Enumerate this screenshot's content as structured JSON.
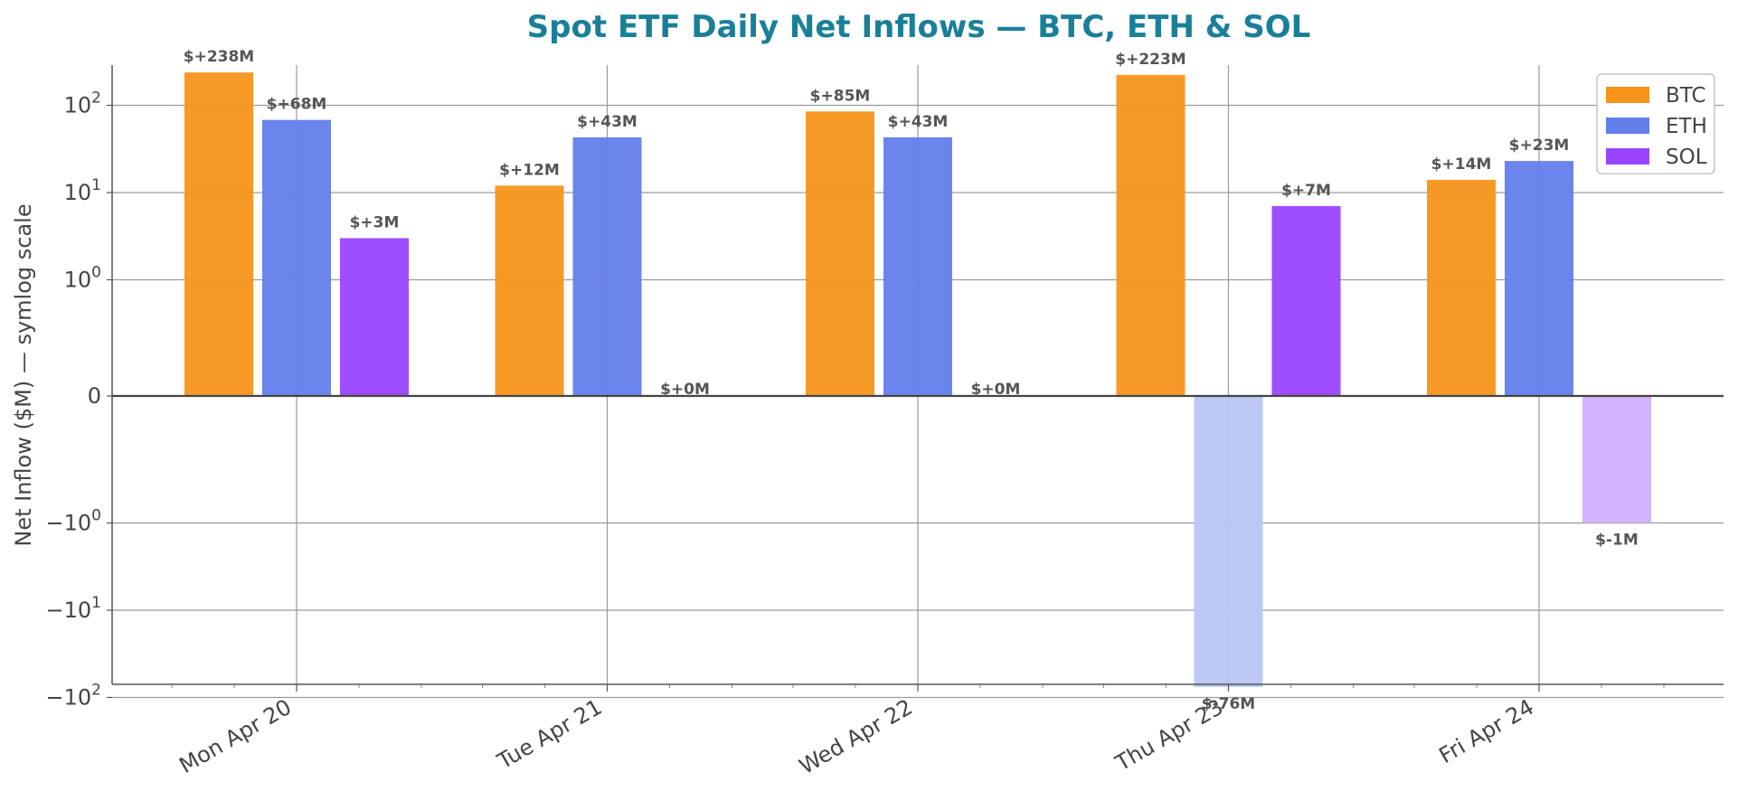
{
  "chart_data": {
    "type": "bar",
    "title": "Spot ETF Daily Net Inflows — BTC, ETH & SOL",
    "xlabel": "",
    "ylabel": "Net Inflow ($M) — symlog scale",
    "yscale": "symlog",
    "ylim": [
      -130,
      500
    ],
    "grid": true,
    "legend_position": "top-right",
    "colors": {
      "title": "#1a7f99",
      "axis": "#555555"
    },
    "categories": [
      "Mon Apr 20",
      "Tue Apr 21",
      "Wed Apr 22",
      "Thu Apr 23",
      "Fri Apr 24"
    ],
    "yticks": [
      {
        "value": 100,
        "base": "10",
        "exp": "2",
        "sign": ""
      },
      {
        "value": 10,
        "base": "10",
        "exp": "1",
        "sign": ""
      },
      {
        "value": 1,
        "base": "10",
        "exp": "0",
        "sign": ""
      },
      {
        "value": 0,
        "base": "0",
        "exp": "",
        "sign": ""
      },
      {
        "value": -1,
        "base": "10",
        "exp": "0",
        "sign": "−"
      },
      {
        "value": -10,
        "base": "10",
        "exp": "1",
        "sign": "−"
      },
      {
        "value": -100,
        "base": "10",
        "exp": "2",
        "sign": "−"
      }
    ],
    "series": [
      {
        "name": "BTC",
        "color": "#f7931a",
        "neg_color": "#fbc98c",
        "values": [
          238,
          12,
          85,
          223,
          14
        ],
        "labels": [
          "$+238M",
          "$+12M",
          "$+85M",
          "$+223M",
          "$+14M"
        ]
      },
      {
        "name": "ETH",
        "color": "#627eea",
        "neg_color": "#b9c5f4",
        "values": [
          68,
          43,
          43,
          -76,
          23
        ],
        "labels": [
          "$+68M",
          "$+43M",
          "$+43M",
          "$-76M",
          "$+23M"
        ]
      },
      {
        "name": "SOL",
        "color": "#9945ff",
        "neg_color": "#d1aefd",
        "values": [
          3,
          0,
          0,
          7,
          -1
        ],
        "labels": [
          "$+3M",
          "$+0M",
          "$+0M",
          "$+7M",
          "$-1M"
        ]
      }
    ]
  }
}
